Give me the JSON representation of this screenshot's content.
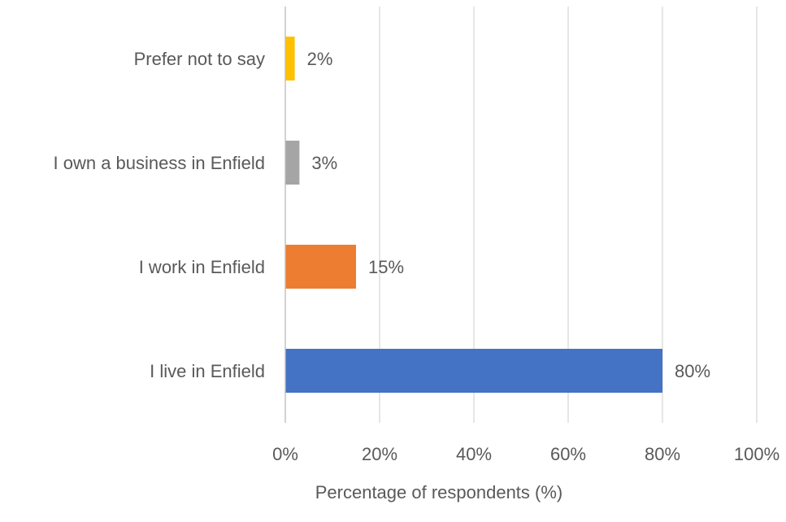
{
  "chart_data": {
    "type": "bar",
    "orientation": "horizontal",
    "categories": [
      "Prefer not to say",
      "I own a business in Enfield",
      "I work in Enfield",
      "I live in Enfield"
    ],
    "values": [
      2,
      3,
      15,
      80
    ],
    "data_labels": [
      "2%",
      "3%",
      "15%",
      "80%"
    ],
    "colors": [
      "#FFC000",
      "#A5A5A5",
      "#ED7D31",
      "#4472C4"
    ],
    "title": "",
    "xlabel": "Percentage of respondents (%)",
    "ylabel": "",
    "xlim": [
      0,
      100
    ],
    "x_ticks": [
      0,
      20,
      40,
      60,
      80,
      100
    ],
    "x_tick_labels": [
      "0%",
      "20%",
      "40%",
      "60%",
      "80%",
      "100%"
    ],
    "grid": true,
    "legend": "none"
  }
}
